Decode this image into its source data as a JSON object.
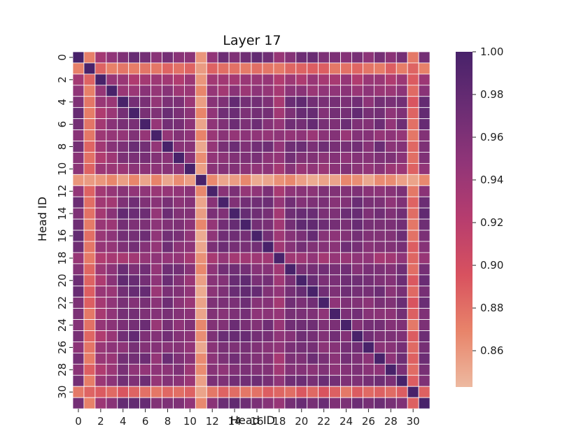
{
  "chart_data": {
    "type": "heatmap",
    "title": "Layer 17",
    "xlabel": "Head ID",
    "ylabel": "Head ID",
    "n": 32,
    "x_ticks": [
      0,
      2,
      4,
      6,
      8,
      10,
      12,
      14,
      16,
      18,
      20,
      22,
      24,
      26,
      28,
      30
    ],
    "y_ticks": [
      0,
      2,
      4,
      6,
      8,
      10,
      12,
      14,
      16,
      18,
      20,
      22,
      24,
      26,
      28,
      30
    ],
    "color_range": [
      0.843,
      1.0
    ],
    "colorbar_ticks": [
      "0.86",
      "0.88",
      "0.90",
      "0.92",
      "0.94",
      "0.96",
      "0.98",
      "1.00"
    ],
    "colorbar_tick_values": [
      0.86,
      0.88,
      0.9,
      0.92,
      0.94,
      0.96,
      0.98,
      1.0
    ],
    "colormap": [
      "#edb9a0",
      "#e8846a",
      "#d8525f",
      "#b73d6e",
      "#913578",
      "#6b2d74",
      "#48226a"
    ],
    "head_base": [
      0.97,
      0.88,
      0.935,
      0.945,
      0.975,
      0.97,
      0.97,
      0.95,
      0.965,
      0.96,
      0.95,
      0.86,
      0.955,
      0.965,
      0.975,
      0.975,
      0.97,
      0.965,
      0.94,
      0.965,
      0.975,
      0.975,
      0.965,
      0.96,
      0.965,
      0.97,
      0.96,
      0.965,
      0.955,
      0.965,
      0.885,
      0.975
    ],
    "diagonal_value": 1.0,
    "cell_grid": "on"
  }
}
